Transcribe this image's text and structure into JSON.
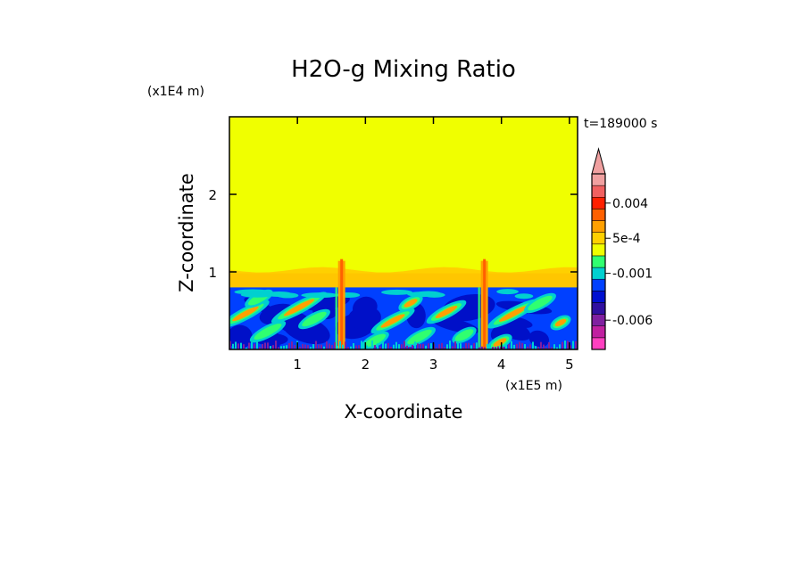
{
  "chart_data": {
    "type": "heatmap",
    "title": "H2O-g Mixing Ratio",
    "xlabel": "X-coordinate",
    "ylabel": "Z-coordinate",
    "x_scale_label": "(x1E5 m)",
    "y_scale_label": "(x1E4 m)",
    "time_label": "t=189000 s",
    "xlim": [
      0,
      5.12
    ],
    "ylim": [
      0,
      3.0
    ],
    "x_ticks": [
      {
        "value": 1,
        "label": "1"
      },
      {
        "value": 2,
        "label": "2"
      },
      {
        "value": 3,
        "label": "3"
      },
      {
        "value": 4,
        "label": "4"
      },
      {
        "value": 5,
        "label": "5"
      }
    ],
    "y_ticks": [
      {
        "value": 1,
        "label": "1"
      },
      {
        "value": 2,
        "label": "2"
      }
    ],
    "colorbar": {
      "levels": [
        {
          "color": "#ff40c0"
        },
        {
          "color": "#c020a0"
        },
        {
          "color": "#8020a0"
        },
        {
          "color": "#3010a0"
        },
        {
          "color": "#0010d0"
        },
        {
          "color": "#0040ff"
        },
        {
          "color": "#00d0d0"
        },
        {
          "color": "#30ff70"
        },
        {
          "color": "#f0ff00"
        },
        {
          "color": "#ffd000"
        },
        {
          "color": "#ffa000"
        },
        {
          "color": "#ff6000"
        },
        {
          "color": "#ff2000"
        },
        {
          "color": "#f06060"
        },
        {
          "color": "#f0a0a0"
        }
      ],
      "labels": [
        {
          "level_index": 2,
          "label": "-0.006"
        },
        {
          "level_index": 6,
          "label": "-0.001"
        },
        {
          "level_index": 9,
          "label": "5e-4"
        },
        {
          "level_index": 12,
          "label": "0.004"
        }
      ]
    },
    "regions": {
      "upper_value_color": "#f0ff00",
      "transition_top_z": 1.05,
      "transition_color": "#ffd000",
      "boundary_layer_top_z": 0.8,
      "boundary_layer_base_color": "#0040ff",
      "plumes_x": [
        1.65,
        3.75
      ]
    }
  }
}
